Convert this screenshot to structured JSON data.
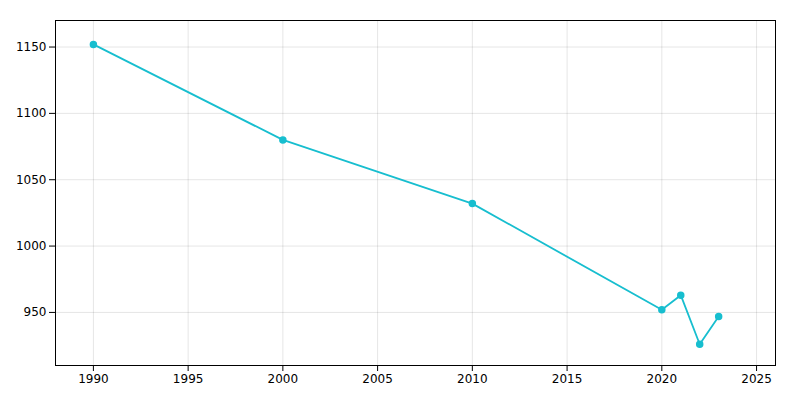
{
  "chart_data": {
    "type": "line",
    "x": [
      1990,
      2000,
      2010,
      2020,
      2021,
      2022,
      2023
    ],
    "values": [
      1152,
      1080,
      1032,
      952,
      963,
      926,
      947
    ],
    "color": "#17becf",
    "marker": "circle",
    "xlim": [
      1988,
      2026
    ],
    "ylim": [
      910,
      1170
    ],
    "xticks": [
      1990,
      1995,
      2000,
      2005,
      2010,
      2015,
      2020,
      2025
    ],
    "yticks": [
      950,
      1000,
      1050,
      1100,
      1150
    ],
    "grid": true
  }
}
